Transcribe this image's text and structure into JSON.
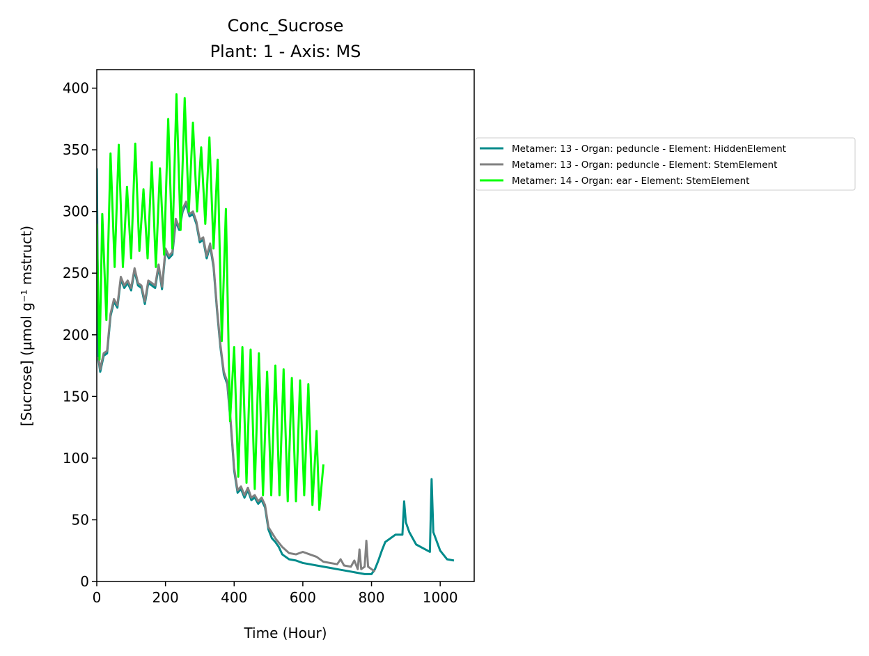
{
  "chart_data": {
    "type": "line",
    "title": "Conc_Sucrose",
    "subtitle": "Plant: 1 - Axis: MS",
    "x_label": "Time (Hour)",
    "y_label": "[Sucrose] (µmol g⁻¹ mstruct)",
    "xlim": [
      0,
      1099
    ],
    "ylim": [
      0,
      415
    ],
    "xticks": [
      0,
      200,
      400,
      600,
      800,
      1000
    ],
    "yticks": [
      0,
      50,
      100,
      150,
      200,
      250,
      300,
      350,
      400
    ],
    "legend": "outside-right-top",
    "series": [
      {
        "name": "Metamer: 13 - Organ: peduncle - Element: HiddenElement",
        "color": "#008b8b",
        "x": [
          0,
          5,
          10,
          20,
          30,
          40,
          50,
          60,
          70,
          80,
          90,
          100,
          110,
          120,
          130,
          140,
          150,
          160,
          170,
          180,
          190,
          200,
          210,
          220,
          230,
          240,
          250,
          260,
          270,
          280,
          290,
          300,
          310,
          320,
          330,
          340,
          350,
          360,
          370,
          380,
          390,
          400,
          410,
          420,
          430,
          440,
          450,
          460,
          470,
          480,
          490,
          500,
          510,
          520,
          530,
          540,
          560,
          580,
          600,
          620,
          640,
          660,
          680,
          700,
          720,
          740,
          760,
          780,
          800,
          810,
          820,
          830,
          840,
          860,
          870,
          890,
          895,
          900,
          910,
          920,
          930,
          950,
          970,
          975,
          980,
          1000,
          1020,
          1040
        ],
        "values": [
          335,
          180,
          170,
          183,
          185,
          215,
          227,
          222,
          245,
          238,
          242,
          236,
          252,
          240,
          238,
          225,
          242,
          240,
          238,
          255,
          237,
          268,
          262,
          265,
          292,
          285,
          300,
          306,
          296,
          298,
          290,
          275,
          277,
          262,
          272,
          255,
          220,
          190,
          168,
          160,
          128,
          90,
          72,
          75,
          68,
          74,
          66,
          68,
          63,
          66,
          60,
          42,
          35,
          32,
          28,
          22,
          18,
          17,
          15,
          14,
          13,
          12,
          11,
          10,
          9,
          8,
          7,
          6,
          6,
          10,
          17,
          25,
          32,
          36,
          38,
          38,
          65,
          48,
          40,
          35,
          30,
          27,
          24,
          83,
          40,
          25,
          18,
          17
        ]
      },
      {
        "name": "Metamer: 13 - Organ: peduncle - Element: StemElement",
        "color": "#808080",
        "x": [
          5,
          10,
          20,
          30,
          40,
          50,
          60,
          70,
          80,
          90,
          100,
          110,
          120,
          130,
          140,
          150,
          160,
          170,
          180,
          190,
          200,
          210,
          220,
          230,
          240,
          250,
          260,
          270,
          280,
          290,
          300,
          310,
          320,
          330,
          340,
          350,
          360,
          370,
          380,
          390,
          400,
          410,
          420,
          430,
          440,
          450,
          460,
          470,
          480,
          490,
          500,
          520,
          540,
          560,
          580,
          600,
          620,
          640,
          660,
          680,
          700,
          710,
          720,
          740,
          750,
          760,
          765,
          770,
          780,
          785,
          790,
          800,
          810
        ],
        "values": [
          182,
          172,
          185,
          187,
          217,
          229,
          224,
          247,
          240,
          244,
          238,
          254,
          242,
          240,
          227,
          244,
          242,
          240,
          257,
          239,
          270,
          264,
          267,
          294,
          287,
          302,
          308,
          298,
          300,
          292,
          277,
          279,
          264,
          274,
          257,
          222,
          192,
          170,
          162,
          130,
          92,
          74,
          77,
          70,
          76,
          68,
          70,
          65,
          68,
          62,
          44,
          35,
          28,
          23,
          22,
          24,
          22,
          20,
          16,
          15,
          14,
          18,
          13,
          12,
          17,
          10,
          26,
          10,
          12,
          33,
          12,
          10,
          8
        ]
      },
      {
        "name": "Metamer: 14 - Organ: ear - Element: StemElement",
        "color": "#00ff00",
        "x": [
          0,
          8,
          16,
          28,
          40,
          52,
          64,
          76,
          88,
          100,
          112,
          124,
          136,
          148,
          160,
          172,
          184,
          196,
          208,
          220,
          232,
          244,
          256,
          268,
          280,
          292,
          304,
          316,
          328,
          340,
          352,
          364,
          376,
          388,
          400,
          412,
          424,
          436,
          448,
          460,
          472,
          484,
          496,
          508,
          520,
          532,
          544,
          556,
          568,
          580,
          592,
          604,
          616,
          628,
          640,
          648,
          660
        ],
        "values": [
          290,
          180,
          298,
          212,
          347,
          255,
          354,
          255,
          320,
          262,
          355,
          268,
          318,
          262,
          340,
          255,
          335,
          265,
          375,
          270,
          395,
          285,
          392,
          300,
          372,
          300,
          352,
          290,
          360,
          270,
          342,
          195,
          302,
          130,
          190,
          85,
          190,
          80,
          188,
          75,
          185,
          70,
          170,
          70,
          175,
          70,
          172,
          65,
          165,
          65,
          163,
          70,
          160,
          62,
          122,
          58,
          95
        ]
      }
    ]
  }
}
